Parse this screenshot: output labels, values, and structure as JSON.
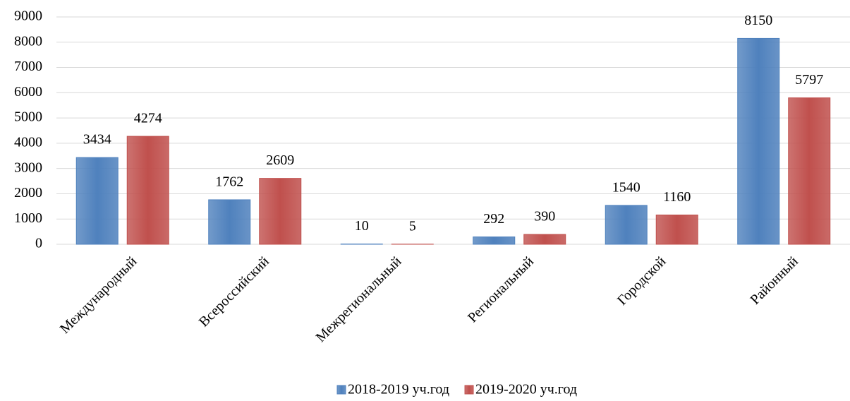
{
  "chart_data": {
    "type": "bar",
    "categories": [
      "Международный",
      "Всероссийский",
      "Межрегиональный",
      "Региональный",
      "Городской",
      "Районный"
    ],
    "series": [
      {
        "name": "2018-2019 уч.год",
        "color": "#4f81bd",
        "values": [
          3434,
          1762,
          10,
          292,
          1540,
          8150
        ]
      },
      {
        "name": "2019-2020 уч.год",
        "color": "#c0504d",
        "values": [
          4274,
          2609,
          5,
          390,
          1160,
          5797
        ]
      }
    ],
    "ylim": [
      0,
      9000
    ],
    "yticks": [
      0,
      1000,
      2000,
      3000,
      4000,
      5000,
      6000,
      7000,
      8000,
      9000
    ],
    "grid": true,
    "legend": "bottom"
  }
}
